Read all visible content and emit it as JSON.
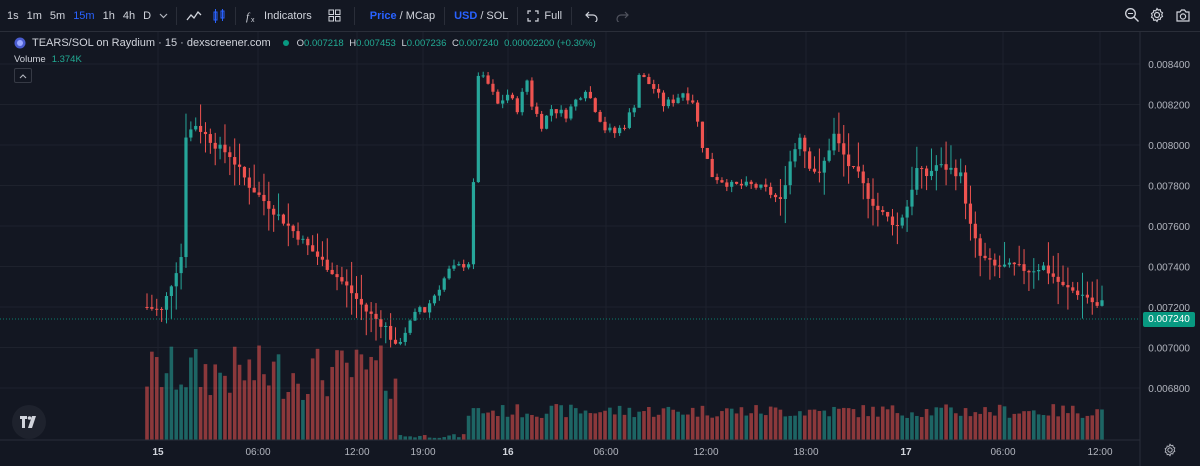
{
  "toolbar": {
    "intervals": [
      {
        "label": "1s",
        "active": false
      },
      {
        "label": "1m",
        "active": false
      },
      {
        "label": "5m",
        "active": false
      },
      {
        "label": "15m",
        "active": true
      },
      {
        "label": "1h",
        "active": false
      },
      {
        "label": "4h",
        "active": false
      },
      {
        "label": "D",
        "active": false
      }
    ],
    "indicators_label": "Indicators",
    "price_label": "Price",
    "mcap_label": "MCap",
    "slash": "/",
    "usd_label": "USD",
    "sol_label": "SOL",
    "full_label": "Full",
    "icons": [
      "chevron-down-icon",
      "line-chart-icon",
      "candles-icon",
      "fx-icon",
      "layouts-icon",
      "fullscreen-icon",
      "undo-icon",
      "redo-icon",
      "zoom-icon",
      "settings-icon",
      "camera-icon"
    ]
  },
  "legend": {
    "title": "TEARS/SOL on Raydium · 15 · dexscreener.com",
    "o_label": "O",
    "o": "0.007218",
    "h_label": "H",
    "h": "0.007453",
    "l_label": "L",
    "l": "0.007236",
    "c_label": "C",
    "c": "0.007240",
    "change": "0.00002200 (+0.30%)",
    "volume_label": "Volume",
    "volume_value": "1.374K"
  },
  "price_axis": {
    "ticks": [
      "0.008400",
      "0.008200",
      "0.008000",
      "0.007800",
      "0.007600",
      "0.007400",
      "0.007200",
      "0.007000",
      "0.006800"
    ],
    "current_price": "0.007240"
  },
  "time_axis": {
    "ticks": [
      {
        "label": "15",
        "bold": true
      },
      {
        "label": "06:00",
        "bold": false
      },
      {
        "label": "12:00",
        "bold": false
      },
      {
        "label": "19:00",
        "bold": false
      },
      {
        "label": "16",
        "bold": true
      },
      {
        "label": "06:00",
        "bold": false
      },
      {
        "label": "12:00",
        "bold": false
      },
      {
        "label": "18:00",
        "bold": false
      },
      {
        "label": "17",
        "bold": true
      },
      {
        "label": "06:00",
        "bold": false
      },
      {
        "label": "12:00",
        "bold": false
      }
    ]
  },
  "colors": {
    "background": "#131722",
    "up": "#26a69a",
    "down": "#ef5350",
    "accent": "#2962ff"
  },
  "chart_data": {
    "type": "candlestick",
    "pair": "TEARS/SOL",
    "interval": "15",
    "y_axis_ticks": [
      0.0068,
      0.007,
      0.0072,
      0.0074,
      0.0076,
      0.0078,
      0.008,
      0.0082,
      0.0084
    ],
    "keyframes": [
      [
        0,
        0.0072
      ],
      [
        3,
        0.00718
      ],
      [
        7,
        0.00745
      ],
      [
        8,
        0.00805
      ],
      [
        10,
        0.0081
      ],
      [
        14,
        0.008
      ],
      [
        17,
        0.00795
      ],
      [
        21,
        0.0078
      ],
      [
        25,
        0.0077
      ],
      [
        29,
        0.0076
      ],
      [
        33,
        0.0075
      ],
      [
        37,
        0.0074
      ],
      [
        41,
        0.0073
      ],
      [
        45,
        0.00718
      ],
      [
        49,
        0.0071
      ],
      [
        51,
        0.007
      ],
      [
        54,
        0.00712
      ],
      [
        56,
        0.0072
      ],
      [
        57,
        0.00718
      ],
      [
        60,
        0.0073
      ],
      [
        62,
        0.00738
      ],
      [
        64,
        0.0074
      ],
      [
        66,
        0.00742
      ],
      [
        67,
        0.0078
      ],
      [
        68,
        0.00835
      ],
      [
        70,
        0.0083
      ],
      [
        72,
        0.0082
      ],
      [
        74,
        0.00825
      ],
      [
        76,
        0.00818
      ],
      [
        78,
        0.00832
      ],
      [
        79,
        0.0082
      ],
      [
        81,
        0.0081
      ],
      [
        83,
        0.00818
      ],
      [
        86,
        0.00815
      ],
      [
        88,
        0.00822
      ],
      [
        90,
        0.00828
      ],
      [
        92,
        0.00818
      ],
      [
        94,
        0.00808
      ],
      [
        96,
        0.00806
      ],
      [
        98,
        0.0081
      ],
      [
        100,
        0.0082
      ],
      [
        101,
        0.00835
      ],
      [
        104,
        0.00828
      ],
      [
        106,
        0.0082
      ],
      [
        108,
        0.00822
      ],
      [
        110,
        0.00826
      ],
      [
        112,
        0.00822
      ],
      [
        114,
        0.008
      ],
      [
        116,
        0.00785
      ],
      [
        120,
        0.0078
      ],
      [
        124,
        0.0078
      ],
      [
        127,
        0.00778
      ],
      [
        130,
        0.00772
      ],
      [
        132,
        0.00792
      ],
      [
        134,
        0.00805
      ],
      [
        136,
        0.0079
      ],
      [
        138,
        0.00785
      ],
      [
        141,
        0.00805
      ],
      [
        144,
        0.0079
      ],
      [
        146,
        0.00785
      ],
      [
        148,
        0.00775
      ],
      [
        150,
        0.00768
      ],
      [
        154,
        0.0076
      ],
      [
        156,
        0.0077
      ],
      [
        158,
        0.00788
      ],
      [
        160,
        0.00785
      ],
      [
        162,
        0.0079
      ],
      [
        165,
        0.00788
      ],
      [
        167,
        0.00785
      ],
      [
        169,
        0.0076
      ],
      [
        171,
        0.00745
      ],
      [
        174,
        0.0074
      ],
      [
        178,
        0.0074
      ],
      [
        181,
        0.00738
      ],
      [
        184,
        0.0074
      ],
      [
        186,
        0.00735
      ],
      [
        188,
        0.0073
      ],
      [
        190,
        0.00728
      ],
      [
        193,
        0.00725
      ],
      [
        195,
        0.0072
      ],
      [
        197,
        0.00724
      ]
    ],
    "n_candles": 197,
    "last_close": 0.00724
  }
}
